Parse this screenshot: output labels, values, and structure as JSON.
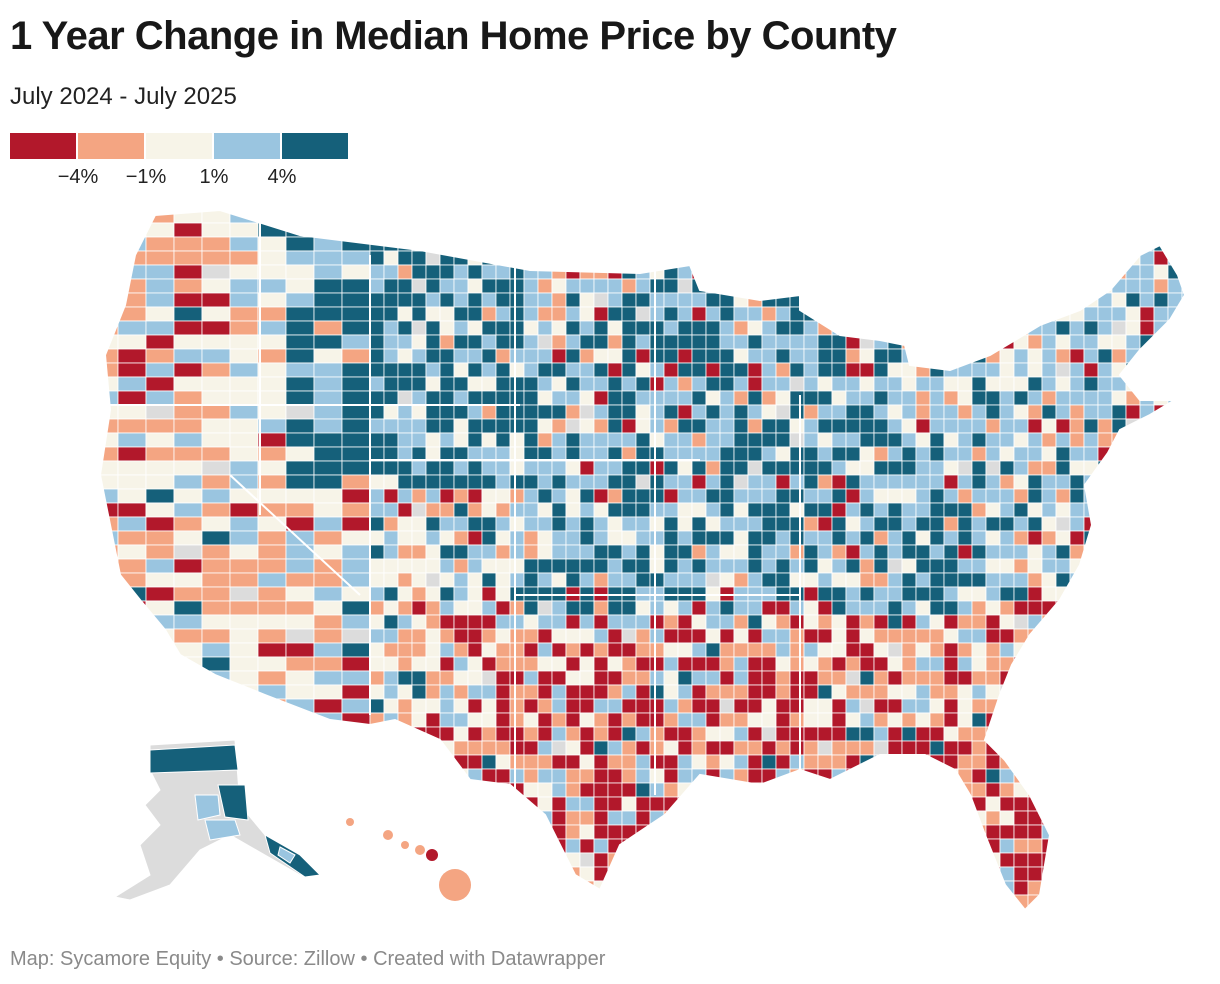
{
  "header": {
    "title": "1 Year Change in Median Home Price by County",
    "subtitle": "July 2024 - July 2025"
  },
  "legend": {
    "bins": [
      {
        "color": "#b2182b",
        "label": "< -4%"
      },
      {
        "color": "#f4a582",
        "label": "-4% to -1%"
      },
      {
        "color": "#f7f4e8",
        "label": "-1% to 1%"
      },
      {
        "color": "#9ac5e0",
        "label": "1% to 4%"
      },
      {
        "color": "#15607a",
        "label": "> 4%"
      }
    ],
    "ticks": [
      "−4%",
      "−1%",
      "1%",
      "4%"
    ],
    "no_data_color": "#dcdcdc"
  },
  "footer": {
    "map_credit": "Map: Sycamore Equity",
    "separator": " • ",
    "source": "Source: Zillow",
    "tool": "Created with Datawrapper"
  }
}
